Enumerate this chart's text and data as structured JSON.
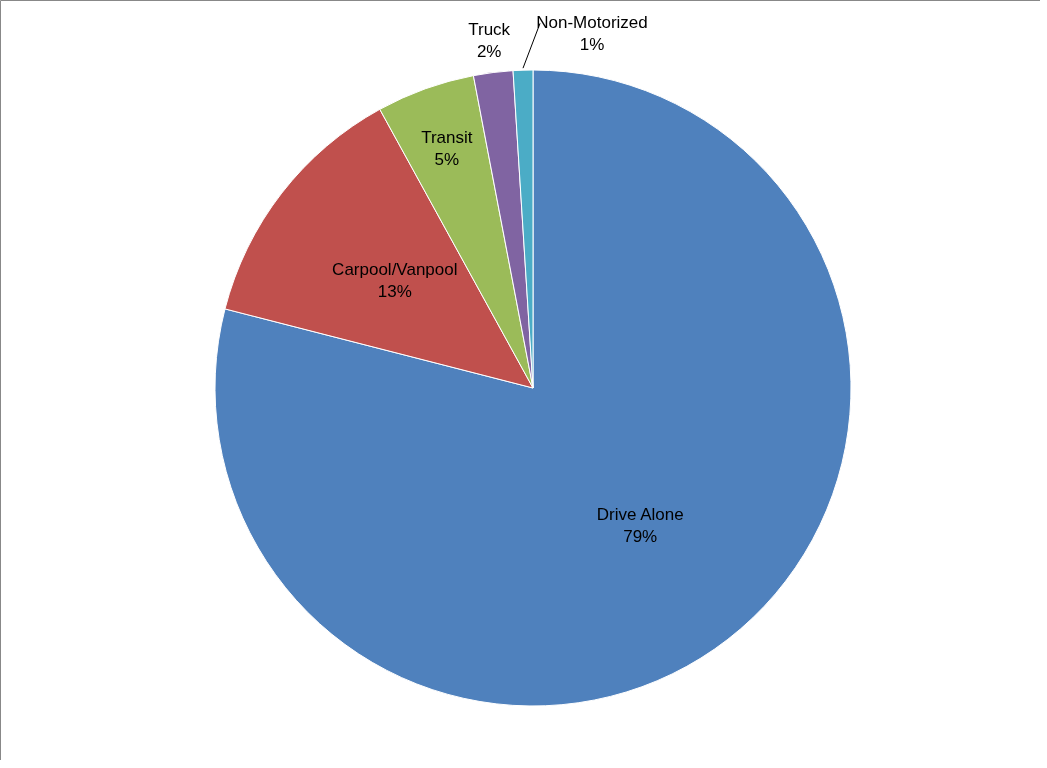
{
  "chart_data": {
    "type": "pie",
    "categories": [
      "Drive Alone",
      "Carpool/Vanpool",
      "Transit",
      "Truck",
      "Non-Motorized"
    ],
    "values": [
      79,
      13,
      5,
      2,
      1
    ],
    "value_labels": [
      "79%",
      "13%",
      "5%",
      "2%",
      "1%"
    ],
    "colors": [
      "#4f81bd",
      "#c0504d",
      "#9bbb59",
      "#8064a2",
      "#4bacc6"
    ]
  }
}
